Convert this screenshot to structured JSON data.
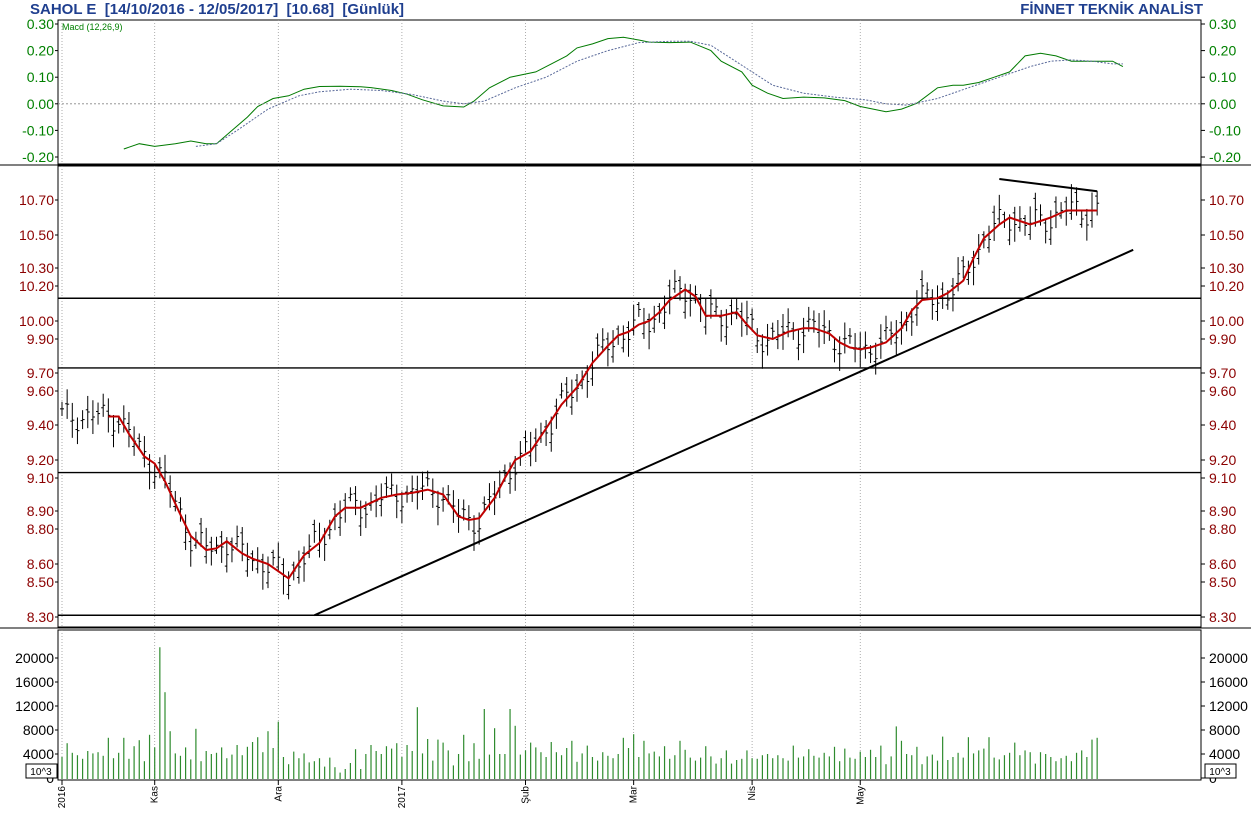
{
  "header": {
    "title": "SAHOL E  [14/10/2016 - 12/05/2017]  [10.68]  [Günlük]",
    "brand": "FİNNET TEKNİK ANALİST"
  },
  "colors": {
    "macd_ticks": "#008000",
    "price_ticks": "#8b0000",
    "moving_average": "#c00000",
    "volume_bars": "#2e8b2e",
    "title_text": "#1f3f8f"
  },
  "chart_data": [
    {
      "type": "line",
      "panel": "macd",
      "legend": "Macd (12,26,9)",
      "ylim": [
        -0.2,
        0.3
      ],
      "yticks": [
        0.3,
        0.2,
        0.1,
        0.0,
        -0.1,
        -0.2
      ],
      "ytick_labels": [
        "0.30",
        "0.20",
        "0.10",
        "0.00",
        "-0.10",
        "-0.20"
      ],
      "series": [
        {
          "role": "macd",
          "x": [
            12,
            15,
            18,
            22,
            25,
            28,
            30,
            33,
            36,
            38,
            41,
            44,
            47,
            50,
            54,
            58,
            60,
            64,
            67,
            70,
            74,
            78,
            80,
            83,
            87,
            92,
            95,
            98,
            100,
            103,
            106,
            109,
            112,
            114,
            118,
            122,
            126,
            128,
            132,
            134,
            137,
            140,
            144,
            148,
            152,
            155,
            160,
            163,
            166,
            170,
            173,
            175,
            178,
            181,
            184,
            187,
            190,
            193,
            196,
            200,
            204,
            206
          ],
          "y": [
            -0.17,
            -0.15,
            -0.16,
            -0.15,
            -0.14,
            -0.15,
            -0.15,
            -0.1,
            -0.05,
            -0.01,
            0.02,
            0.03,
            0.055,
            0.065,
            0.066,
            0.064,
            0.061,
            0.05,
            0.036,
            0.015,
            -0.008,
            -0.012,
            0.01,
            0.06,
            0.1,
            0.12,
            0.15,
            0.18,
            0.21,
            0.225,
            0.245,
            0.25,
            0.24,
            0.232,
            0.23,
            0.232,
            0.2,
            0.16,
            0.12,
            0.07,
            0.04,
            0.02,
            0.025,
            0.022,
            0.012,
            -0.01,
            -0.03,
            -0.02,
            0.002,
            0.06,
            0.07,
            0.07,
            0.08,
            0.1,
            0.12,
            0.18,
            0.19,
            0.18,
            0.16,
            0.16,
            0.16,
            0.14
          ]
        },
        {
          "role": "signal",
          "x": [
            26,
            30,
            34,
            40,
            46,
            50,
            56,
            62,
            68,
            74,
            78,
            82,
            88,
            94,
            100,
            106,
            112,
            118,
            122,
            126,
            130,
            134,
            138,
            144,
            150,
            156,
            160,
            164,
            170,
            176,
            182,
            188,
            192,
            196,
            200,
            204,
            206
          ],
          "y": [
            -0.16,
            -0.15,
            -0.1,
            -0.02,
            0.03,
            0.045,
            0.055,
            0.05,
            0.035,
            0.01,
            0.0,
            0.01,
            0.06,
            0.1,
            0.16,
            0.2,
            0.23,
            0.235,
            0.235,
            0.22,
            0.17,
            0.12,
            0.07,
            0.04,
            0.025,
            0.015,
            0.0,
            -0.005,
            0.02,
            0.06,
            0.1,
            0.14,
            0.16,
            0.165,
            0.16,
            0.15,
            0.15
          ]
        }
      ]
    },
    {
      "type": "line",
      "panel": "price",
      "current": "10.68",
      "ylim": [
        8.27,
        10.88
      ],
      "yticks": [
        10.7,
        10.5,
        10.3,
        10.2,
        10.0,
        9.9,
        9.7,
        9.6,
        9.4,
        9.2,
        9.1,
        8.9,
        8.8,
        8.6,
        8.5,
        8.3
      ],
      "ytick_labels": [
        "10.70",
        "10.50",
        "10.30",
        "10.20",
        "10.00",
        "9.90",
        "9.70",
        "9.60",
        "9.40",
        "9.20",
        "9.10",
        "8.90",
        "8.80",
        "8.60",
        "8.50",
        "8.30"
      ],
      "horizontal_lines": [
        10.13,
        9.73,
        9.13,
        8.31
      ],
      "trendlines": [
        {
          "x": [
            49,
            208
          ],
          "y": [
            8.31,
            10.41
          ]
        },
        {
          "x": [
            182,
            201
          ],
          "y": [
            10.82,
            10.75
          ]
        }
      ],
      "series": [
        {
          "role": "moving_average",
          "x": [
            9,
            11,
            13,
            16,
            18,
            20,
            23,
            25,
            28,
            30,
            32,
            35,
            37,
            40,
            44,
            47,
            50,
            53,
            55,
            58,
            62,
            65,
            68,
            71,
            74,
            77,
            79,
            81,
            84,
            86,
            88,
            91,
            94,
            97,
            100,
            103,
            106,
            108,
            110,
            112,
            114,
            116,
            118,
            121,
            123,
            125,
            128,
            131,
            133,
            135,
            138,
            141,
            144,
            146,
            149,
            151,
            153,
            155,
            157,
            160,
            163,
            165,
            167,
            170,
            172,
            175,
            177,
            179,
            182,
            184,
            186,
            188,
            190,
            192,
            195,
            198,
            201
          ],
          "y": [
            9.45,
            9.45,
            9.35,
            9.22,
            9.18,
            9.08,
            8.88,
            8.76,
            8.68,
            8.69,
            8.73,
            8.66,
            8.63,
            8.6,
            8.52,
            8.65,
            8.72,
            8.87,
            8.92,
            8.92,
            8.98,
            9.0,
            9.01,
            9.03,
            9.0,
            8.87,
            8.85,
            8.86,
            8.98,
            9.1,
            9.2,
            9.25,
            9.38,
            9.52,
            9.62,
            9.76,
            9.86,
            9.92,
            9.94,
            9.98,
            10.0,
            10.05,
            10.12,
            10.18,
            10.14,
            10.03,
            10.03,
            10.05,
            9.98,
            9.92,
            9.9,
            9.94,
            9.96,
            9.96,
            9.93,
            9.88,
            9.85,
            9.84,
            9.85,
            9.88,
            9.96,
            10.06,
            10.12,
            10.13,
            10.16,
            10.23,
            10.36,
            10.48,
            10.56,
            10.6,
            10.58,
            10.56,
            10.58,
            10.6,
            10.64,
            10.64,
            10.64
          ]
        }
      ],
      "bars_estimated": true
    },
    {
      "type": "bar",
      "panel": "volume",
      "unit_label": "10^3",
      "ylim": [
        0,
        22000
      ],
      "yticks": [
        20000,
        16000,
        12000,
        8000,
        4000,
        0
      ],
      "ytick_labels": [
        "20000",
        "16000",
        "12000",
        "8000",
        "4000",
        "0"
      ],
      "x_tick_labels": [
        "2016",
        "Kas",
        "Ara",
        "2017",
        "Şub",
        "Mar",
        "Nis",
        "May"
      ],
      "x_tick_pos": [
        0,
        18,
        42,
        66,
        90,
        111,
        134,
        155
      ],
      "values": [
        3500,
        5800,
        4200,
        3800,
        3200,
        4500,
        4100,
        4300,
        3700,
        6700,
        3300,
        4200,
        6700,
        3200,
        5300,
        6300,
        2800,
        7200,
        5100,
        21800,
        14300,
        7800,
        4100,
        3700,
        5100,
        3100,
        8200,
        2800,
        4500,
        4000,
        4200,
        5100,
        3300,
        3900,
        5500,
        3800,
        5200,
        6000,
        6800,
        4300,
        7800,
        5000,
        9400,
        3500,
        2300,
        4400,
        3300,
        4100,
        2600,
        2800,
        3300,
        1900,
        3400,
        1800,
        900,
        1500,
        2500,
        4800,
        1500,
        4000,
        5500,
        4500,
        4000,
        5300,
        4900,
        5800,
        3500,
        5500,
        4500,
        11800,
        4100,
        6500,
        2900,
        6400,
        5900,
        4600,
        2100,
        4000,
        7200,
        2800,
        5800,
        3200,
        11500,
        3900,
        8300,
        4000,
        4000,
        11500,
        8700,
        3900,
        4600,
        5900,
        5100,
        4300,
        3500,
        6000,
        4300,
        3800,
        5000,
        6200,
        2700,
        4100,
        5400,
        3500,
        2900,
        4300,
        3700,
        3300,
        4000,
        6700,
        5000,
        7300,
        3500,
        6200,
        4100,
        4400,
        3600,
        5300,
        3200,
        3800,
        6200,
        4700,
        3400,
        2900,
        3400,
        5300,
        3600,
        2400,
        3300,
        4600,
        2400,
        3000,
        3200,
        4600,
        3300,
        3200,
        3800,
        4000,
        3300,
        3800,
        3300,
        2900,
        5400,
        3400,
        3600,
        4800,
        3700,
        3400,
        4200,
        3600,
        5200,
        2800,
        4900,
        3400,
        3200,
        4400,
        3500,
        4700,
        3500,
        5400,
        2300,
        3600,
        8600,
        6200,
        4000,
        3800,
        5200,
        2300,
        3600,
        3900,
        2900,
        6900,
        3000,
        3500,
        4200,
        3400,
        6800,
        4100,
        4600,
        4900,
        6800,
        3400,
        3100,
        3800,
        4200,
        5900,
        3800,
        4600,
        4300,
        2400,
        4300,
        4000,
        3500,
        2800,
        3300,
        3700,
        2800,
        4200,
        4600,
        3500,
        6400,
        6700
      ]
    }
  ]
}
